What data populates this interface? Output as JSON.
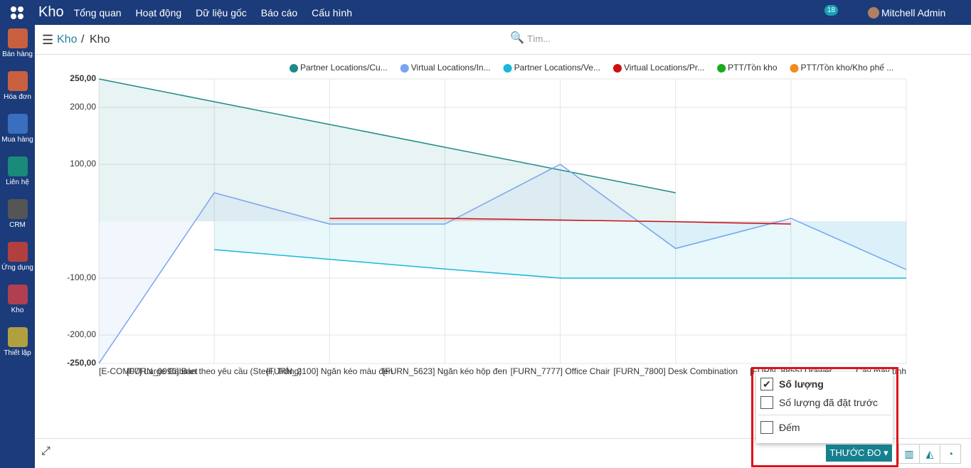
{
  "navbar": {
    "app": "Kho",
    "menus": [
      "Tổng quan",
      "Hoạt động",
      "Dữ liệu gốc",
      "Báo cáo",
      "Cấu hình"
    ],
    "badge": "18",
    "user": "Mitchell Admin"
  },
  "sidebar": [
    "Bán hàng",
    "Hóa đơn",
    "Mua hàng",
    "Liên hệ",
    "CRM",
    "Ứng dụng",
    "Kho",
    "Thiết lập"
  ],
  "breadcrumb": {
    "parent": "Kho",
    "current": "Kho"
  },
  "search": {
    "placeholder": "Tìm..."
  },
  "measures": {
    "items": [
      "Số lượng",
      "Số lượng đã đặt trước"
    ],
    "count": "Đếm",
    "button": "THƯỚC ĐO"
  },
  "chart_data": {
    "type": "line",
    "area": true,
    "grid": true,
    "categories": [
      "[E-COM07] Large Cabinet",
      "[FURN_0096] Bàn theo yêu cầu (Steel, Trắng)",
      "[FURN_2100] Ngăn kéo màu đen",
      "[FURN_5623] Ngăn kéo hộp đen",
      "[FURN_7777] Office Chair",
      "[FURN_7800] Desk Combination",
      "[FURN_8855] Drawer",
      "Cây máy tính"
    ],
    "series": [
      {
        "name": "Partner Locations/Cu...",
        "color": "#1f8a8a",
        "values": [
          250,
          210,
          170,
          130,
          90,
          50,
          null,
          null
        ]
      },
      {
        "name": "Virtual Locations/In...",
        "color": "#7ba4f0",
        "values": [
          -250,
          50,
          -5,
          -5,
          100,
          -48,
          5,
          -85
        ]
      },
      {
        "name": "Partner Locations/Ve...",
        "color": "#1ab8d8",
        "values": [
          null,
          -50,
          -67,
          -84,
          -100,
          -100,
          -100,
          -100
        ]
      },
      {
        "name": "Virtual Locations/Pr...",
        "color": "#cc1010",
        "values": [
          null,
          null,
          5,
          5,
          2,
          -1,
          -5,
          null
        ]
      },
      {
        "name": "PTT/Tồn kho",
        "color": "#1aab1a",
        "values": [
          null,
          null,
          null,
          null,
          null,
          null,
          null,
          null
        ]
      },
      {
        "name": "PTT/Tồn kho/Kho phế ...",
        "color": "#f08c1a",
        "values": [
          null,
          null,
          null,
          null,
          null,
          null,
          null,
          null
        ]
      }
    ],
    "ylim": [
      -250,
      250
    ],
    "yticks": [
      {
        "value": 250,
        "label": "250,00"
      },
      {
        "value": 200,
        "label": "200,00"
      },
      {
        "value": 100,
        "label": "100,00"
      },
      {
        "value": -100,
        "label": "-100,00"
      },
      {
        "value": -200,
        "label": "-200,00"
      },
      {
        "value": -250,
        "label": "-250,00"
      }
    ]
  }
}
